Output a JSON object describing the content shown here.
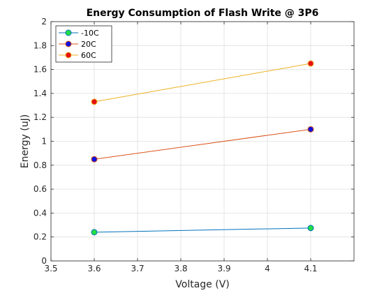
{
  "chart_data": {
    "type": "line",
    "title": "Energy Consumption of Flash Write @ 3P6",
    "xlabel": "Voltage (V)",
    "ylabel": "Energy (uJ)",
    "xlim": [
      3.5,
      4.2
    ],
    "ylim": [
      0,
      2
    ],
    "xticks": [
      3.5,
      3.6,
      3.7,
      3.8,
      3.9,
      4.0,
      4.1
    ],
    "xtick_labels": [
      "3.5",
      "3.6",
      "3.7",
      "3.8",
      "3.9",
      "4",
      "4.1"
    ],
    "yticks": [
      0,
      0.2,
      0.4,
      0.6,
      0.8,
      1.0,
      1.2,
      1.4,
      1.6,
      1.8,
      2.0
    ],
    "ytick_labels": [
      "0",
      "0.2",
      "0.4",
      "0.6",
      "0.8",
      "1",
      "1.2",
      "1.4",
      "1.6",
      "1.8",
      "2"
    ],
    "grid": true,
    "legend_position": "top-left",
    "series": [
      {
        "name": "-10C",
        "x": [
          3.6,
          4.1
        ],
        "y": [
          0.24,
          0.275
        ],
        "line_color": "#0072BD",
        "marker_color": "#22DD44"
      },
      {
        "name": "20C",
        "x": [
          3.6,
          4.1
        ],
        "y": [
          0.85,
          1.1
        ],
        "line_color": "#D95319",
        "marker_color": "#1010DD"
      },
      {
        "name": "60C",
        "x": [
          3.6,
          4.1
        ],
        "y": [
          1.33,
          1.65
        ],
        "line_color": "#EDB120",
        "marker_color": "#E51010"
      }
    ]
  }
}
